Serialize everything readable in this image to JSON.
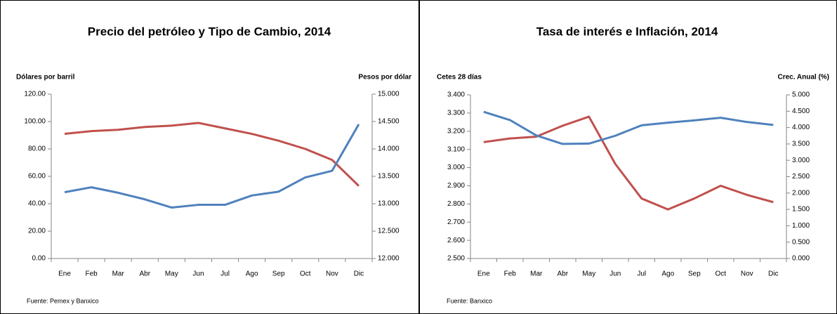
{
  "chart_data": [
    {
      "type": "line",
      "title": "Precio del petróleo y Tipo de Cambio, 2014",
      "y_label": "Dólares por barril",
      "y2_label": "Pesos por dólar",
      "source": "Fuente: Pemex y Banxico",
      "categories": [
        "Ene",
        "Feb",
        "Mar",
        "Abr",
        "May",
        "Jun",
        "Jul",
        "Ago",
        "Sep",
        "Oct",
        "Nov",
        "Dic"
      ],
      "series": [
        {
          "name": "Precio del petróleo",
          "color": "#c0504d",
          "values": [
            91,
            93,
            94,
            96,
            97,
            99,
            95,
            91,
            86,
            80,
            72,
            53
          ]
        },
        {
          "name": "Tipo de Cambio",
          "color": "#4f81bd",
          "axis": "y2",
          "values": [
            13.21,
            13.3,
            13.2,
            13.08,
            12.93,
            12.98,
            12.98,
            13.15,
            13.22,
            13.48,
            13.6,
            14.45
          ]
        }
      ],
      "ylim": [
        0,
        120
      ],
      "yticks": [
        {
          "value": 0,
          "label": "0.00"
        },
        {
          "value": 20,
          "label": "20.00"
        },
        {
          "value": 40,
          "label": "40.00"
        },
        {
          "value": 60,
          "label": "60.00"
        },
        {
          "value": 80,
          "label": "80.00"
        },
        {
          "value": 100,
          "label": "100.00"
        },
        {
          "value": 120,
          "label": "120.00"
        }
      ],
      "y2lim": [
        12,
        15
      ],
      "y2ticks": [
        {
          "value": 12,
          "label": "12.000"
        },
        {
          "value": 12.5,
          "label": "12.500"
        },
        {
          "value": 13,
          "label": "13.000"
        },
        {
          "value": 13.5,
          "label": "13.500"
        },
        {
          "value": 14,
          "label": "14.000"
        },
        {
          "value": 14.5,
          "label": "14.500"
        },
        {
          "value": 15,
          "label": "15.000"
        }
      ]
    },
    {
      "type": "line",
      "title": "Tasa de interés e Inflación, 2014",
      "y_label": "Cetes 28 días",
      "y2_label": "Crec. Anual (%)",
      "source": "Fuente: Banxico",
      "categories": [
        "Ene",
        "Feb",
        "Mar",
        "Abr",
        "May",
        "Jun",
        "Jul",
        "Ago",
        "Sep",
        "Oct",
        "Nov",
        "Dic"
      ],
      "series": [
        {
          "name": "Cetes 28 días",
          "color": "#c0504d",
          "values": [
            3.14,
            3.16,
            3.17,
            3.23,
            3.28,
            3.02,
            2.83,
            2.77,
            2.83,
            2.9,
            2.85,
            2.81
          ]
        },
        {
          "name": "Inflación",
          "color": "#4f81bd",
          "axis": "y2",
          "values": [
            4.48,
            4.23,
            3.76,
            3.5,
            3.51,
            3.75,
            4.07,
            4.15,
            4.22,
            4.3,
            4.17,
            4.08
          ]
        }
      ],
      "ylim": [
        2.5,
        3.4
      ],
      "yticks": [
        {
          "value": 2.5,
          "label": "2.500"
        },
        {
          "value": 2.6,
          "label": "2.600"
        },
        {
          "value": 2.7,
          "label": "2.700"
        },
        {
          "value": 2.8,
          "label": "2.800"
        },
        {
          "value": 2.9,
          "label": "2.900"
        },
        {
          "value": 3.0,
          "label": "3.000"
        },
        {
          "value": 3.1,
          "label": "3.100"
        },
        {
          "value": 3.2,
          "label": "3.200"
        },
        {
          "value": 3.3,
          "label": "3.300"
        },
        {
          "value": 3.4,
          "label": "3.400"
        }
      ],
      "y2lim": [
        0,
        5
      ],
      "y2ticks": [
        {
          "value": 0,
          "label": "0.000"
        },
        {
          "value": 0.5,
          "label": "0.500"
        },
        {
          "value": 1,
          "label": "1.000"
        },
        {
          "value": 1.5,
          "label": "1.500"
        },
        {
          "value": 2,
          "label": "2.000"
        },
        {
          "value": 2.5,
          "label": "2.500"
        },
        {
          "value": 3,
          "label": "3.000"
        },
        {
          "value": 3.5,
          "label": "3.500"
        },
        {
          "value": 4,
          "label": "4.000"
        },
        {
          "value": 4.5,
          "label": "4.500"
        },
        {
          "value": 5,
          "label": "5.000"
        }
      ]
    }
  ]
}
